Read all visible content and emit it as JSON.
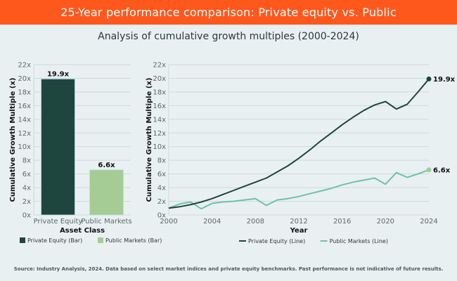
{
  "header": {
    "title": "25-Year performance comparison: Private equity vs. Public"
  },
  "subtitle": "Analysis of cumulative growth multiples (2000-2024)",
  "footer": "Source: Industry Analysis, 2024. Data based on select market indices and private equity benchmarks. Past performance is not indicative of future results.",
  "colors": {
    "header": "#ff581d",
    "private_equity": "#1f453f",
    "public_markets_bar": "#a5cc95",
    "public_markets_line": "#6cc3a9",
    "background": "#e9f0f1"
  },
  "chart_data": [
    {
      "type": "bar",
      "title": "",
      "xlabel": "Asset Class",
      "ylabel": "Cumulative Growth Multiple (x)",
      "categories": [
        "Private Equity",
        "Public Markets"
      ],
      "values": [
        19.9,
        6.6
      ],
      "data_labels": [
        "19.9x",
        "6.6x"
      ],
      "ylim": [
        0,
        22
      ],
      "yticks": [
        0,
        2,
        4,
        6,
        8,
        10,
        12,
        14,
        16,
        18,
        20,
        22
      ],
      "ytick_labels": [
        "0x",
        "2x",
        "4x",
        "6x",
        "8x",
        "10x",
        "12x",
        "14x",
        "16x",
        "18x",
        "20x",
        "22x"
      ],
      "grid": true,
      "legend": {
        "placement": "bottom",
        "entries": [
          "Private Equity (Bar)",
          "Public Markets (Bar)"
        ]
      }
    },
    {
      "type": "line",
      "title": "",
      "xlabel": "Year",
      "ylabel": "Cumulative Growth Multiple (x)",
      "x": [
        2000,
        2001,
        2002,
        2003,
        2004,
        2005,
        2006,
        2007,
        2008,
        2009,
        2010,
        2011,
        2012,
        2013,
        2014,
        2015,
        2016,
        2017,
        2018,
        2019,
        2020,
        2021,
        2022,
        2023,
        2024
      ],
      "series": [
        {
          "name": "Private Equity (Line)",
          "values": [
            1.0,
            1.2,
            1.5,
            1.9,
            2.4,
            3.0,
            3.6,
            4.2,
            4.8,
            5.4,
            6.3,
            7.2,
            8.3,
            9.5,
            10.8,
            12.0,
            13.2,
            14.3,
            15.3,
            16.1,
            16.6,
            15.5,
            16.2,
            18.0,
            19.9
          ],
          "end_label": "19.9x"
        },
        {
          "name": "Public Markets (Line)",
          "values": [
            1.0,
            1.6,
            1.9,
            0.9,
            1.7,
            1.9,
            2.0,
            2.2,
            2.4,
            1.4,
            2.2,
            2.4,
            2.7,
            3.1,
            3.5,
            3.9,
            4.4,
            4.8,
            5.1,
            5.4,
            4.5,
            6.2,
            5.5,
            6.0,
            6.6
          ],
          "end_label": "6.6x"
        }
      ],
      "xlim": [
        2000,
        2024
      ],
      "xticks": [
        2000,
        2004,
        2008,
        2012,
        2016,
        2020,
        2024
      ],
      "ylim": [
        0,
        22
      ],
      "yticks": [
        0,
        2,
        4,
        6,
        8,
        10,
        12,
        14,
        16,
        18,
        20,
        22
      ],
      "ytick_labels": [
        "0x",
        "2x",
        "4x",
        "6x",
        "8x",
        "10x",
        "12x",
        "14x",
        "16x",
        "18x",
        "20x",
        "22x"
      ],
      "grid": true,
      "legend": {
        "placement": "bottom",
        "entries": [
          "Private Equity (Line)",
          "Public Markets (Line)"
        ]
      }
    }
  ]
}
